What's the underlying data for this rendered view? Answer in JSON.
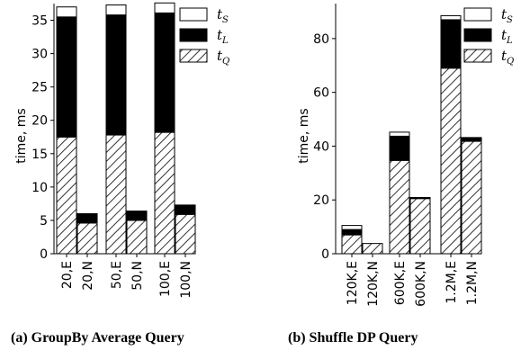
{
  "chart_data": [
    {
      "type": "bar",
      "stacked": true,
      "caption": "(a) GroupBy Average Query",
      "ylabel": "time, ms",
      "ylim": [
        0,
        37.5
      ],
      "yticks": [
        0,
        5,
        10,
        15,
        20,
        25,
        30,
        35
      ],
      "categories": [
        "20,E",
        "20,N",
        "50,E",
        "50,N",
        "100,E",
        "100,N"
      ],
      "groups": [
        2,
        2,
        2
      ],
      "series": [
        {
          "name": "t_Q",
          "fill": "hatch",
          "values": [
            17.5,
            4.6,
            17.8,
            5.0,
            18.2,
            5.9
          ]
        },
        {
          "name": "t_L",
          "fill": "#000000",
          "values": [
            18.0,
            1.4,
            18.0,
            1.4,
            17.9,
            1.4
          ]
        },
        {
          "name": "t_S",
          "fill": "#ffffff",
          "values": [
            1.5,
            0.0,
            1.5,
            0.0,
            1.5,
            0.0
          ]
        }
      ],
      "legend": [
        {
          "base": "t",
          "sub": "S",
          "fill": "#ffffff"
        },
        {
          "base": "t",
          "sub": "L",
          "fill": "#000000"
        },
        {
          "base": "t",
          "sub": "Q",
          "fill": "hatch"
        }
      ],
      "legend_position": "top-right",
      "grid": false
    },
    {
      "type": "bar",
      "stacked": true,
      "caption": "(b) Shuffle DP Query",
      "ylabel": "time, ms",
      "ylim": [
        0,
        93
      ],
      "yticks": [
        0,
        20,
        40,
        60,
        80
      ],
      "categories": [
        "120K,E",
        "120K,N",
        "600K,E",
        "600K,N",
        "1.2M,E",
        "1.2M,N"
      ],
      "groups": [
        2,
        2,
        2
      ],
      "series": [
        {
          "name": "t_Q",
          "fill": "hatch",
          "values": [
            7.0,
            3.8,
            34.7,
            20.5,
            69.0,
            41.8
          ]
        },
        {
          "name": "t_L",
          "fill": "#000000",
          "values": [
            2.0,
            0.0,
            9.0,
            0.4,
            18.0,
            1.4
          ]
        },
        {
          "name": "t_S",
          "fill": "#ffffff",
          "values": [
            1.5,
            0.0,
            1.5,
            0.0,
            1.5,
            0.0
          ]
        }
      ],
      "legend": [
        {
          "base": "t",
          "sub": "S",
          "fill": "#ffffff"
        },
        {
          "base": "t",
          "sub": "L",
          "fill": "#000000"
        },
        {
          "base": "t",
          "sub": "Q",
          "fill": "hatch"
        }
      ],
      "legend_position": "top-right",
      "grid": false
    }
  ]
}
